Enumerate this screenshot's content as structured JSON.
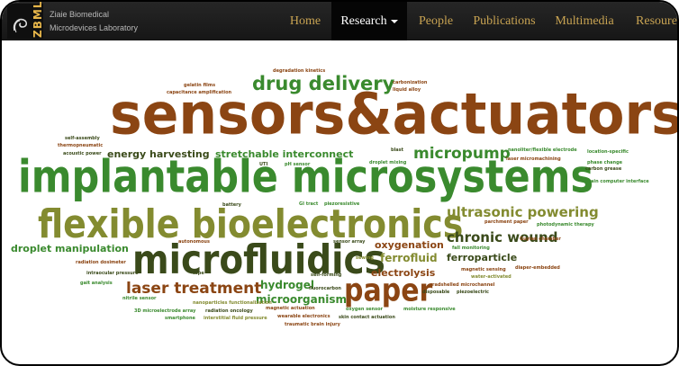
{
  "brand": {
    "logo_text": "ZBML",
    "name_line1": "Ziaie Biomedical",
    "name_line2": "Microdevices Laboratory"
  },
  "nav": {
    "items": [
      {
        "label": "Home"
      },
      {
        "label": "Research"
      },
      {
        "label": "People"
      },
      {
        "label": "Publications"
      },
      {
        "label": "Multimedia"
      },
      {
        "label": "Resoure"
      }
    ],
    "active": "Research"
  },
  "colors": {
    "nav_text": "#c8a352",
    "brown": "#8b4513",
    "green": "#3a8a2e",
    "olive": "#838b30",
    "dark_green": "#3a4a1a"
  },
  "word_cloud": {
    "words": [
      "sensors&actuators",
      "implantable microsystems",
      "flexible bioelectronics",
      "microfluidics",
      "drug delivery",
      "paper",
      "laser treatment",
      "micropump",
      "ultrasonic powering",
      "chronic wound",
      "stretchable interconnect",
      "energy harvesting",
      "droplet manipulation",
      "hydrogel",
      "microorganism",
      "ferrofluid",
      "oxygenation",
      "ferroparticle",
      "electrolysis",
      "degradation kinetics",
      "gelatin films",
      "capacitance amplification",
      "carbonization",
      "liquid alloy",
      "self-assembly",
      "thermopneumatic",
      "acoustic power",
      "blast",
      "nanoliter/flexible electrode",
      "laser micromachining",
      "location-specific",
      "phase change",
      "carbon grease",
      "brain computer interface",
      "droplet mixing",
      "pH sensor",
      "UTI",
      "GI tract",
      "piezoresistive",
      "battery",
      "parchment paper",
      "photodynamic therapy",
      "Guylan chamber",
      "fall monitoring",
      "autonomous",
      "sensor array",
      "radiation dosimeter",
      "intraocular pressure",
      "tape",
      "self-forming",
      "sewing",
      "fluorocarbon",
      "gait analysis",
      "nitrile sensor",
      "nanoparticles functionalization",
      "radiation oncology",
      "magnetic actuation",
      "3D microelectrode array",
      "smartphone",
      "interstitial fluid pressure",
      "wearable electronics",
      "traumatic brain injury",
      "oxygen sensor",
      "skin contact actuation",
      "moisture responsive",
      "disposable",
      "piezoelectric",
      "radshelled microchannel",
      "water-activated",
      "magnetic sensing",
      "diaper-embedded"
    ]
  }
}
